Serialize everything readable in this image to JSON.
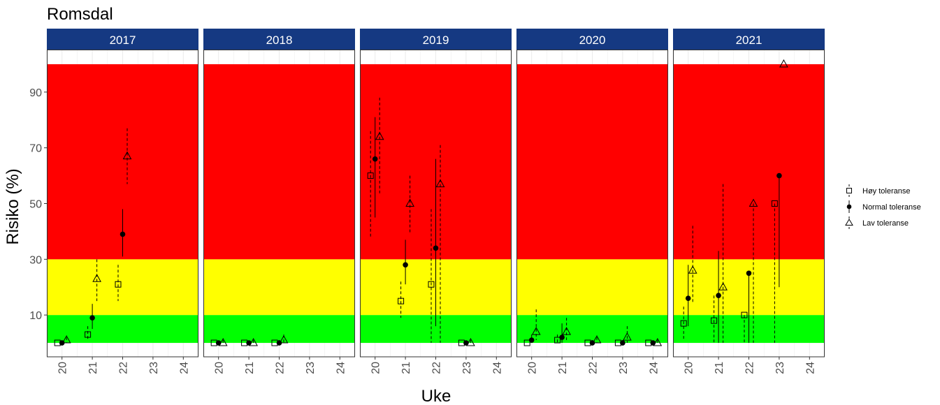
{
  "chart_data": {
    "type": "scatter",
    "title": "Romsdal",
    "xlabel": "Uke",
    "ylabel": "Risiko (%)",
    "x_ticks": [
      "20",
      "21",
      "22",
      "23",
      "24"
    ],
    "y_ticks": [
      "10",
      "30",
      "50",
      "70",
      "90"
    ],
    "xlim": [
      19.5,
      24.5
    ],
    "ylim": [
      -5,
      105
    ],
    "grid": true,
    "legend_position": "right",
    "risk_bands": [
      {
        "from": 0,
        "to": 10,
        "color": "#00ff00"
      },
      {
        "from": 10,
        "to": 30,
        "color": "#ffff00"
      },
      {
        "from": 30,
        "to": 100,
        "color": "#ff0000"
      }
    ],
    "strip_color": "#153982",
    "series": [
      {
        "name": "Høy toleranse",
        "marker": "square",
        "line": "dashed",
        "offset": -0.15
      },
      {
        "name": "Normal toleranse",
        "marker": "circle",
        "line": "solid",
        "offset": 0
      },
      {
        "name": "Lav toleranse",
        "marker": "triangle",
        "line": "dashed",
        "offset": 0.15
      }
    ],
    "panels": [
      {
        "label": "2017",
        "points": [
          {
            "series": 0,
            "x": 20,
            "y": 0,
            "lo": 0,
            "hi": 0
          },
          {
            "series": 1,
            "x": 20,
            "y": 0,
            "lo": 0,
            "hi": 0
          },
          {
            "series": 2,
            "x": 20,
            "y": 1,
            "lo": 0,
            "hi": 2
          },
          {
            "series": 0,
            "x": 21,
            "y": 3,
            "lo": 1,
            "hi": 6
          },
          {
            "series": 1,
            "x": 21,
            "y": 9,
            "lo": 5,
            "hi": 14
          },
          {
            "series": 2,
            "x": 21,
            "y": 23,
            "lo": 15,
            "hi": 30
          },
          {
            "series": 0,
            "x": 22,
            "y": 21,
            "lo": 15,
            "hi": 28
          },
          {
            "series": 1,
            "x": 22,
            "y": 39,
            "lo": 31,
            "hi": 48
          },
          {
            "series": 2,
            "x": 22,
            "y": 67,
            "lo": 57,
            "hi": 77
          }
        ]
      },
      {
        "label": "2018",
        "points": [
          {
            "series": 0,
            "x": 20,
            "y": 0,
            "lo": 0,
            "hi": 0
          },
          {
            "series": 1,
            "x": 20,
            "y": 0,
            "lo": 0,
            "hi": 0
          },
          {
            "series": 2,
            "x": 20,
            "y": 0,
            "lo": 0,
            "hi": 1
          },
          {
            "series": 0,
            "x": 21,
            "y": 0,
            "lo": 0,
            "hi": 0
          },
          {
            "series": 1,
            "x": 21,
            "y": 0,
            "lo": 0,
            "hi": 0
          },
          {
            "series": 2,
            "x": 21,
            "y": 0,
            "lo": 0,
            "hi": 1
          },
          {
            "series": 0,
            "x": 22,
            "y": 0,
            "lo": 0,
            "hi": 0
          },
          {
            "series": 1,
            "x": 22,
            "y": 0,
            "lo": 0,
            "hi": 1
          },
          {
            "series": 2,
            "x": 22,
            "y": 1,
            "lo": 0,
            "hi": 3
          }
        ]
      },
      {
        "label": "2019",
        "points": [
          {
            "series": 0,
            "x": 20,
            "y": 60,
            "lo": 38,
            "hi": 76
          },
          {
            "series": 1,
            "x": 20,
            "y": 66,
            "lo": 45,
            "hi": 81
          },
          {
            "series": 2,
            "x": 20,
            "y": 74,
            "lo": 53,
            "hi": 88
          },
          {
            "series": 0,
            "x": 21,
            "y": 15,
            "lo": 9,
            "hi": 22
          },
          {
            "series": 1,
            "x": 21,
            "y": 28,
            "lo": 21,
            "hi": 37
          },
          {
            "series": 2,
            "x": 21,
            "y": 50,
            "lo": 39,
            "hi": 60
          },
          {
            "series": 0,
            "x": 22,
            "y": 21,
            "lo": 0,
            "hi": 48
          },
          {
            "series": 1,
            "x": 22,
            "y": 34,
            "lo": 6,
            "hi": 66
          },
          {
            "series": 2,
            "x": 22,
            "y": 57,
            "lo": 0,
            "hi": 71
          },
          {
            "series": 0,
            "x": 23,
            "y": 0,
            "lo": 0,
            "hi": 0
          },
          {
            "series": 1,
            "x": 23,
            "y": 0,
            "lo": 0,
            "hi": 0
          },
          {
            "series": 2,
            "x": 23,
            "y": 0,
            "lo": 0,
            "hi": 1
          }
        ]
      },
      {
        "label": "2020",
        "points": [
          {
            "series": 0,
            "x": 20,
            "y": 0,
            "lo": 0,
            "hi": 0
          },
          {
            "series": 1,
            "x": 20,
            "y": 1,
            "lo": 0,
            "hi": 3
          },
          {
            "series": 2,
            "x": 20,
            "y": 4,
            "lo": 1,
            "hi": 12
          },
          {
            "series": 0,
            "x": 21,
            "y": 1,
            "lo": 0,
            "hi": 3
          },
          {
            "series": 1,
            "x": 21,
            "y": 2,
            "lo": 0,
            "hi": 7
          },
          {
            "series": 2,
            "x": 21,
            "y": 4,
            "lo": 1,
            "hi": 9
          },
          {
            "series": 0,
            "x": 22,
            "y": 0,
            "lo": 0,
            "hi": 0
          },
          {
            "series": 1,
            "x": 22,
            "y": 0,
            "lo": 0,
            "hi": 1
          },
          {
            "series": 2,
            "x": 22,
            "y": 1,
            "lo": 0,
            "hi": 2
          },
          {
            "series": 0,
            "x": 23,
            "y": 0,
            "lo": 0,
            "hi": 0
          },
          {
            "series": 1,
            "x": 23,
            "y": 0,
            "lo": 0,
            "hi": 1
          },
          {
            "series": 2,
            "x": 23,
            "y": 2,
            "lo": 0,
            "hi": 6
          },
          {
            "series": 0,
            "x": 24,
            "y": 0,
            "lo": 0,
            "hi": 0
          },
          {
            "series": 1,
            "x": 24,
            "y": 0,
            "lo": 0,
            "hi": 0
          },
          {
            "series": 2,
            "x": 24,
            "y": 0,
            "lo": 0,
            "hi": 1
          }
        ]
      },
      {
        "label": "2021",
        "points": [
          {
            "series": 0,
            "x": 20,
            "y": 7,
            "lo": 1,
            "hi": 13
          },
          {
            "series": 1,
            "x": 20,
            "y": 16,
            "lo": 6,
            "hi": 28
          },
          {
            "series": 2,
            "x": 20,
            "y": 26,
            "lo": 14,
            "hi": 42
          },
          {
            "series": 0,
            "x": 21,
            "y": 8,
            "lo": 0,
            "hi": 17
          },
          {
            "series": 1,
            "x": 21,
            "y": 17,
            "lo": 0,
            "hi": 33
          },
          {
            "series": 2,
            "x": 21,
            "y": 20,
            "lo": 0,
            "hi": 57
          },
          {
            "series": 0,
            "x": 22,
            "y": 10,
            "lo": 0,
            "hi": 10
          },
          {
            "series": 1,
            "x": 22,
            "y": 25,
            "lo": 0,
            "hi": 25
          },
          {
            "series": 2,
            "x": 22,
            "y": 50,
            "lo": 0,
            "hi": 50
          },
          {
            "series": 0,
            "x": 23,
            "y": 50,
            "lo": 0,
            "hi": 50
          },
          {
            "series": 1,
            "x": 23,
            "y": 60,
            "lo": 20,
            "hi": 60
          },
          {
            "series": 2,
            "x": 23,
            "y": 100,
            "lo": 100,
            "hi": 100
          }
        ]
      }
    ]
  }
}
